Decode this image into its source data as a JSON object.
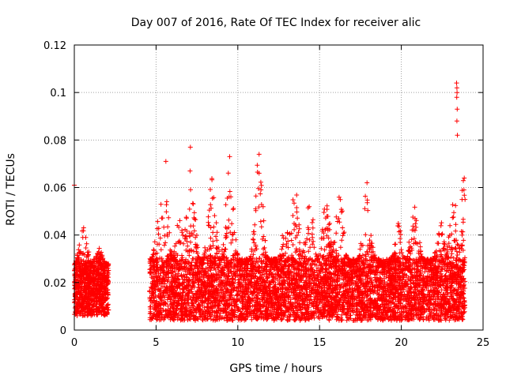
{
  "chart_data": {
    "type": "scatter",
    "title": "Day 007 of 2016, Rate Of TEC Index for receiver alic",
    "xlabel": "GPS time / hours",
    "ylabel": "ROTI / TECUs",
    "xlim": [
      0,
      25
    ],
    "ylim": [
      0,
      0.12
    ],
    "x_ticks": [
      0,
      5,
      10,
      15,
      20,
      25
    ],
    "x_tick_labels": [
      "0",
      "5",
      "10",
      "15",
      "20",
      "25"
    ],
    "y_ticks": [
      0,
      0.02,
      0.04,
      0.06,
      0.08,
      0.1,
      0.12
    ],
    "y_tick_labels": [
      "0",
      "0.02",
      "0.04",
      "0.06",
      "0.08",
      "0.1",
      "0.12"
    ],
    "grid": true,
    "marker": "+",
    "color": "#ff0000",
    "series": [
      {
        "name": "ROTI",
        "segments": [
          {
            "start": 0.0,
            "end": 2.1,
            "base_min": 0.006,
            "base_max": 0.028,
            "count": 950
          },
          {
            "start": 4.6,
            "end": 23.9,
            "base_min": 0.004,
            "base_max": 0.03,
            "count": 6200
          }
        ],
        "peaks": [
          {
            "x": 0.55,
            "y": 0.045
          },
          {
            "x": 1.5,
            "y": 0.035
          },
          {
            "x": 5.2,
            "y": 0.05
          },
          {
            "x": 5.5,
            "y": 0.066
          },
          {
            "x": 6.5,
            "y": 0.055
          },
          {
            "x": 7.1,
            "y": 0.075
          },
          {
            "x": 8.4,
            "y": 0.064
          },
          {
            "x": 9.5,
            "y": 0.07
          },
          {
            "x": 11.3,
            "y": 0.074
          },
          {
            "x": 12.9,
            "y": 0.044
          },
          {
            "x": 13.5,
            "y": 0.061
          },
          {
            "x": 14.4,
            "y": 0.056
          },
          {
            "x": 15.4,
            "y": 0.055
          },
          {
            "x": 16.2,
            "y": 0.059
          },
          {
            "x": 17.9,
            "y": 0.062
          },
          {
            "x": 19.8,
            "y": 0.045
          },
          {
            "x": 20.8,
            "y": 0.054
          },
          {
            "x": 22.4,
            "y": 0.046
          },
          {
            "x": 23.2,
            "y": 0.06
          },
          {
            "x": 23.8,
            "y": 0.065
          }
        ],
        "outliers": [
          {
            "x": 23.38,
            "y": 0.104
          },
          {
            "x": 23.4,
            "y": 0.102
          },
          {
            "x": 23.41,
            "y": 0.1
          },
          {
            "x": 23.39,
            "y": 0.098
          },
          {
            "x": 23.42,
            "y": 0.093
          },
          {
            "x": 23.4,
            "y": 0.088
          },
          {
            "x": 23.43,
            "y": 0.082
          },
          {
            "x": 23.85,
            "y": 0.064
          },
          {
            "x": 23.83,
            "y": 0.059
          },
          {
            "x": 11.3,
            "y": 0.074
          },
          {
            "x": 7.1,
            "y": 0.077
          },
          {
            "x": 9.5,
            "y": 0.073
          },
          {
            "x": 5.6,
            "y": 0.071
          },
          {
            "x": 0.0,
            "y": 0.061
          },
          {
            "x": 17.9,
            "y": 0.062
          }
        ]
      }
    ]
  }
}
